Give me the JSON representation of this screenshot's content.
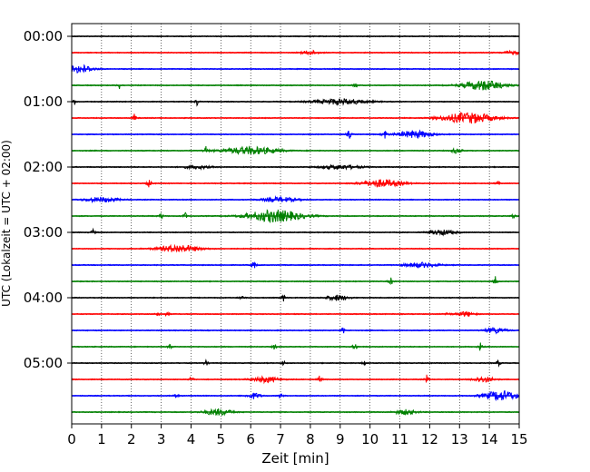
{
  "chart_data": {
    "type": "line",
    "title": "",
    "xlabel": "Zeit  [min]",
    "ylabel": "UTC (Lokalzeit = UTC + 02:00)",
    "xlim": [
      0,
      15
    ],
    "x_ticks": [
      "0",
      "1",
      "2",
      "3",
      "4",
      "5",
      "6",
      "7",
      "8",
      "9",
      "10",
      "11",
      "12",
      "13",
      "14",
      "15"
    ],
    "y_ticks": [
      "00:00",
      "01:00",
      "02:00",
      "03:00",
      "04:00",
      "05:00"
    ],
    "grid": "vertical dotted at each minute",
    "trace_interval_minutes": 15,
    "trace_start_times_utc": [
      "00:00",
      "00:15",
      "00:30",
      "00:45",
      "01:00",
      "01:15",
      "01:30",
      "01:45",
      "02:00",
      "02:15",
      "02:30",
      "02:45",
      "03:00",
      "03:15",
      "03:30",
      "03:45",
      "04:00",
      "04:15",
      "04:30",
      "04:45",
      "05:00",
      "05:15",
      "05:30",
      "05:45"
    ],
    "color_cycle": [
      "#000000",
      "#ff0000",
      "#0000ff",
      "#008000"
    ],
    "series": [
      {
        "start": "00:00",
        "color": "#000000",
        "events": []
      },
      {
        "start": "00:15",
        "color": "#ff0000",
        "events": [
          {
            "t": 8.0,
            "amp": 0.25,
            "w": 0.5
          },
          {
            "t": 14.8,
            "amp": 0.2,
            "w": 0.6
          }
        ]
      },
      {
        "start": "00:30",
        "color": "#0000ff",
        "events": [
          {
            "t": 0.3,
            "amp": 0.5,
            "w": 0.7
          }
        ]
      },
      {
        "start": "00:45",
        "color": "#008000",
        "events": [
          {
            "t": 1.6,
            "amp": 0.45,
            "w": 0.1
          },
          {
            "t": 9.5,
            "amp": 0.5,
            "w": 0.1
          },
          {
            "t": 13.8,
            "amp": 0.6,
            "w": 1.2
          }
        ]
      },
      {
        "start": "01:00",
        "color": "#000000",
        "events": [
          {
            "t": 0.1,
            "amp": 0.35,
            "w": 0.1
          },
          {
            "t": 4.2,
            "amp": 0.55,
            "w": 0.1
          },
          {
            "t": 9.0,
            "amp": 0.35,
            "w": 1.5
          }
        ]
      },
      {
        "start": "01:15",
        "color": "#ff0000",
        "events": [
          {
            "t": 2.1,
            "amp": 0.55,
            "w": 0.1
          },
          {
            "t": 13.3,
            "amp": 0.65,
            "w": 1.5
          }
        ]
      },
      {
        "start": "01:30",
        "color": "#0000ff",
        "events": [
          {
            "t": 9.3,
            "amp": 0.8,
            "w": 0.1
          },
          {
            "t": 10.5,
            "amp": 0.8,
            "w": 0.1
          },
          {
            "t": 11.5,
            "amp": 0.45,
            "w": 1.0
          }
        ]
      },
      {
        "start": "01:45",
        "color": "#008000",
        "events": [
          {
            "t": 4.5,
            "amp": 0.6,
            "w": 0.1
          },
          {
            "t": 6.0,
            "amp": 0.45,
            "w": 1.6
          },
          {
            "t": 12.9,
            "amp": 0.3,
            "w": 0.3
          }
        ]
      },
      {
        "start": "02:00",
        "color": "#000000",
        "events": [
          {
            "t": 4.2,
            "amp": 0.2,
            "w": 0.8
          },
          {
            "t": 9.0,
            "amp": 0.25,
            "w": 1.2
          }
        ]
      },
      {
        "start": "02:15",
        "color": "#ff0000",
        "events": [
          {
            "t": 2.6,
            "amp": 0.8,
            "w": 0.1
          },
          {
            "t": 10.4,
            "amp": 0.45,
            "w": 1.2
          },
          {
            "t": 14.3,
            "amp": 0.3,
            "w": 0.1
          }
        ]
      },
      {
        "start": "02:30",
        "color": "#0000ff",
        "events": [
          {
            "t": 1.0,
            "amp": 0.3,
            "w": 1.0
          },
          {
            "t": 7.0,
            "amp": 0.3,
            "w": 1.0
          }
        ]
      },
      {
        "start": "02:45",
        "color": "#008000",
        "events": [
          {
            "t": 3.0,
            "amp": 0.5,
            "w": 0.1
          },
          {
            "t": 3.8,
            "amp": 0.6,
            "w": 0.1
          },
          {
            "t": 6.8,
            "amp": 0.75,
            "w": 1.6
          },
          {
            "t": 14.8,
            "amp": 0.55,
            "w": 0.1
          }
        ]
      },
      {
        "start": "03:00",
        "color": "#000000",
        "events": [
          {
            "t": 0.7,
            "amp": 0.5,
            "w": 0.1
          },
          {
            "t": 12.4,
            "amp": 0.3,
            "w": 0.8
          }
        ]
      },
      {
        "start": "03:15",
        "color": "#ff0000",
        "events": [
          {
            "t": 3.6,
            "amp": 0.45,
            "w": 1.2
          }
        ]
      },
      {
        "start": "03:30",
        "color": "#0000ff",
        "events": [
          {
            "t": 6.1,
            "amp": 0.85,
            "w": 0.1
          },
          {
            "t": 11.7,
            "amp": 0.3,
            "w": 1.0
          }
        ]
      },
      {
        "start": "03:45",
        "color": "#008000",
        "events": [
          {
            "t": 10.7,
            "amp": 0.6,
            "w": 0.1
          },
          {
            "t": 14.2,
            "amp": 0.6,
            "w": 0.1
          }
        ]
      },
      {
        "start": "04:00",
        "color": "#000000",
        "events": [
          {
            "t": 5.7,
            "amp": 0.5,
            "w": 0.1
          },
          {
            "t": 7.1,
            "amp": 0.55,
            "w": 0.1
          },
          {
            "t": 8.9,
            "amp": 0.35,
            "w": 0.6
          }
        ]
      },
      {
        "start": "04:15",
        "color": "#ff0000",
        "events": [
          {
            "t": 2.9,
            "amp": 0.5,
            "w": 0.1
          },
          {
            "t": 3.2,
            "amp": 0.5,
            "w": 0.1
          },
          {
            "t": 12.6,
            "amp": 0.5,
            "w": 0.1
          },
          {
            "t": 13.2,
            "amp": 0.3,
            "w": 0.5
          }
        ]
      },
      {
        "start": "04:30",
        "color": "#0000ff",
        "events": [
          {
            "t": 9.1,
            "amp": 0.5,
            "w": 0.1
          },
          {
            "t": 14.2,
            "amp": 0.35,
            "w": 0.6
          }
        ]
      },
      {
        "start": "04:45",
        "color": "#008000",
        "events": [
          {
            "t": 3.3,
            "amp": 0.5,
            "w": 0.1
          },
          {
            "t": 6.8,
            "amp": 0.5,
            "w": 0.1
          },
          {
            "t": 9.5,
            "amp": 0.65,
            "w": 0.1
          },
          {
            "t": 13.7,
            "amp": 0.65,
            "w": 0.1
          }
        ]
      },
      {
        "start": "05:00",
        "color": "#000000",
        "events": [
          {
            "t": 4.5,
            "amp": 0.5,
            "w": 0.1
          },
          {
            "t": 7.1,
            "amp": 0.45,
            "w": 0.1
          },
          {
            "t": 9.8,
            "amp": 0.6,
            "w": 0.1
          },
          {
            "t": 14.3,
            "amp": 0.55,
            "w": 0.1
          }
        ]
      },
      {
        "start": "05:15",
        "color": "#ff0000",
        "events": [
          {
            "t": 4.0,
            "amp": 0.6,
            "w": 0.1
          },
          {
            "t": 6.5,
            "amp": 0.35,
            "w": 0.8
          },
          {
            "t": 8.3,
            "amp": 0.7,
            "w": 0.1
          },
          {
            "t": 11.9,
            "amp": 0.55,
            "w": 0.1
          },
          {
            "t": 13.8,
            "amp": 0.35,
            "w": 0.6
          }
        ]
      },
      {
        "start": "05:30",
        "color": "#0000ff",
        "events": [
          {
            "t": 3.5,
            "amp": 0.5,
            "w": 0.1
          },
          {
            "t": 6.1,
            "amp": 0.35,
            "w": 0.4
          },
          {
            "t": 7.0,
            "amp": 0.5,
            "w": 0.1
          },
          {
            "t": 14.4,
            "amp": 0.6,
            "w": 1.0
          }
        ]
      },
      {
        "start": "05:45",
        "color": "#008000",
        "events": [
          {
            "t": 4.9,
            "amp": 0.4,
            "w": 0.8
          },
          {
            "t": 11.2,
            "amp": 0.3,
            "w": 0.6
          }
        ]
      }
    ]
  }
}
